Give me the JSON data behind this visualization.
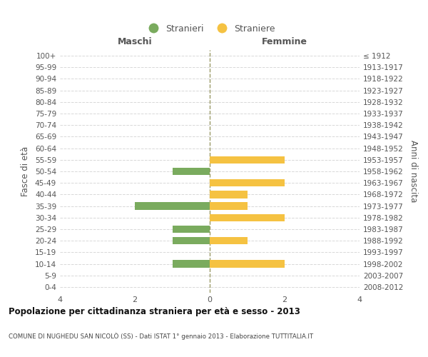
{
  "age_groups": [
    "100+",
    "95-99",
    "90-94",
    "85-89",
    "80-84",
    "75-79",
    "70-74",
    "65-69",
    "60-64",
    "55-59",
    "50-54",
    "45-49",
    "40-44",
    "35-39",
    "30-34",
    "25-29",
    "20-24",
    "15-19",
    "10-14",
    "5-9",
    "0-4"
  ],
  "birth_years": [
    "≤ 1912",
    "1913-1917",
    "1918-1922",
    "1923-1927",
    "1928-1932",
    "1933-1937",
    "1938-1942",
    "1943-1947",
    "1948-1952",
    "1953-1957",
    "1958-1962",
    "1963-1967",
    "1968-1972",
    "1973-1977",
    "1978-1982",
    "1983-1987",
    "1988-1992",
    "1993-1997",
    "1998-2002",
    "2003-2007",
    "2008-2012"
  ],
  "maschi_stranieri": [
    0,
    0,
    0,
    0,
    0,
    0,
    0,
    0,
    0,
    0,
    1,
    0,
    0,
    2,
    0,
    1,
    1,
    0,
    1,
    0,
    0
  ],
  "femmine_straniere": [
    0,
    0,
    0,
    0,
    0,
    0,
    0,
    0,
    0,
    2,
    0,
    2,
    1,
    1,
    2,
    0,
    1,
    0,
    2,
    0,
    0
  ],
  "color_maschi": "#7aab5e",
  "color_femmine": "#f5c242",
  "xlim": 4,
  "title_main": "Popolazione per cittadinanza straniera per età e sesso - 2013",
  "title_sub": "COMUNE DI NUGHEDU SAN NICOLÒ (SS) - Dati ISTAT 1° gennaio 2013 - Elaborazione TUTTITALIA.IT",
  "legend_maschi": "Stranieri",
  "legend_femmine": "Straniere",
  "label_maschi": "Maschi",
  "label_femmine": "Femmine",
  "label_fasce": "Fasce di età",
  "label_anni": "Anni di nascita",
  "bg_color": "#ffffff",
  "grid_color": "#d8d8d8",
  "dashed_line_color": "#999966"
}
